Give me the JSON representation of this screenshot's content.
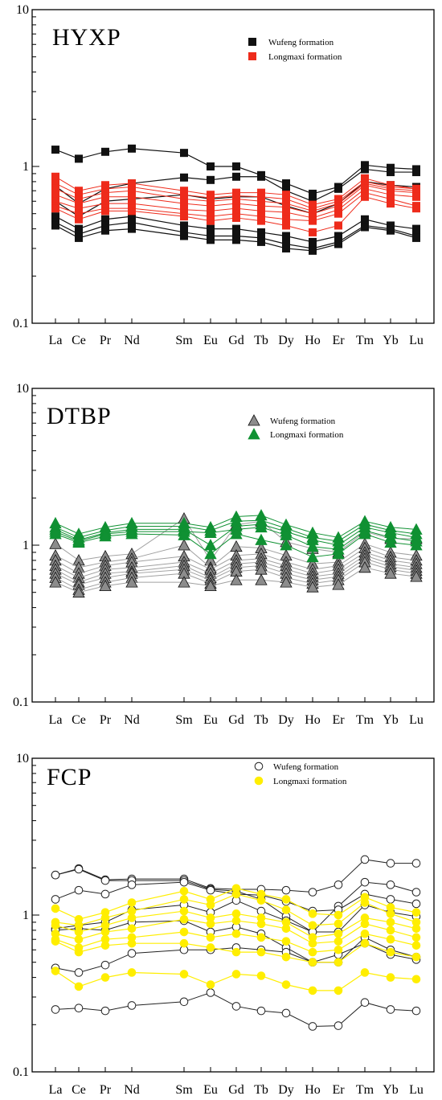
{
  "colors": {
    "wufeng_hyxp": "#111111",
    "longmaxi_hyxp": "#ee2b1b",
    "wufeng_dtbp": "#8c8c8c",
    "longmaxi_dtbp": "#109133",
    "wufeng_fcp": "#ffffff",
    "longmaxi_fcp": "#ffee00"
  },
  "chart_data": [
    {
      "type": "line",
      "title": "HYXP",
      "y_scale": "log",
      "ylim": [
        0.1,
        10
      ],
      "y_ticks": [
        "10",
        "1",
        "0.1"
      ],
      "categories": [
        "La",
        "Ce",
        "Pr",
        "Nd",
        "Sm",
        "Eu",
        "Gd",
        "Tb",
        "Dy",
        "Ho",
        "Er",
        "Tm",
        "Yb",
        "Lu"
      ],
      "legend": [
        "Wufeng  formation",
        "Longmaxi formation"
      ],
      "series": [
        {
          "group": "wufeng",
          "values": [
            1.28,
            1.12,
            1.24,
            1.3,
            1.22,
            1.0,
            1.0,
            0.88,
            0.78,
            0.67,
            0.74,
            1.02,
            0.98,
            0.96
          ]
        },
        {
          "group": "wufeng",
          "values": [
            0.75,
            0.58,
            0.72,
            0.78,
            0.85,
            0.82,
            0.86,
            0.86,
            0.7,
            0.6,
            0.72,
            0.96,
            0.92,
            0.92
          ]
        },
        {
          "group": "wufeng",
          "values": [
            0.6,
            0.48,
            0.6,
            0.62,
            0.66,
            0.62,
            0.64,
            0.64,
            0.56,
            0.5,
            0.58,
            0.8,
            0.76,
            0.74
          ]
        },
        {
          "group": "wufeng",
          "values": [
            0.48,
            0.4,
            0.46,
            0.48,
            0.42,
            0.4,
            0.4,
            0.38,
            0.36,
            0.33,
            0.36,
            0.46,
            0.42,
            0.4
          ]
        },
        {
          "group": "wufeng",
          "values": [
            0.44,
            0.37,
            0.42,
            0.44,
            0.38,
            0.36,
            0.36,
            0.35,
            0.32,
            0.3,
            0.33,
            0.42,
            0.4,
            0.36
          ]
        },
        {
          "group": "wufeng",
          "values": [
            0.42,
            0.35,
            0.39,
            0.4,
            0.36,
            0.34,
            0.34,
            0.33,
            0.3,
            0.29,
            0.32,
            0.41,
            0.39,
            0.35
          ]
        },
        {
          "group": "longmaxi",
          "values": [
            0.86,
            0.7,
            0.76,
            0.78,
            0.7,
            0.66,
            0.68,
            0.68,
            0.66,
            0.57,
            0.62,
            0.84,
            0.76,
            0.72
          ]
        },
        {
          "group": "longmaxi",
          "values": [
            0.78,
            0.66,
            0.72,
            0.74,
            0.66,
            0.63,
            0.65,
            0.64,
            0.62,
            0.54,
            0.6,
            0.8,
            0.74,
            0.72
          ]
        },
        {
          "group": "longmaxi",
          "values": [
            0.72,
            0.62,
            0.68,
            0.7,
            0.62,
            0.6,
            0.62,
            0.6,
            0.58,
            0.52,
            0.58,
            0.78,
            0.72,
            0.7
          ]
        },
        {
          "group": "longmaxi",
          "values": [
            0.66,
            0.58,
            0.64,
            0.64,
            0.58,
            0.56,
            0.58,
            0.56,
            0.55,
            0.5,
            0.56,
            0.76,
            0.7,
            0.68
          ]
        },
        {
          "group": "longmaxi",
          "values": [
            0.6,
            0.54,
            0.58,
            0.58,
            0.53,
            0.52,
            0.54,
            0.52,
            0.51,
            0.47,
            0.53,
            0.72,
            0.66,
            0.64
          ]
        },
        {
          "group": "longmaxi",
          "values": [
            0.56,
            0.5,
            0.54,
            0.54,
            0.5,
            0.48,
            0.5,
            0.48,
            0.46,
            0.45,
            0.5,
            0.68,
            0.62,
            0.56
          ]
        },
        {
          "group": "longmaxi",
          "values": [
            0.54,
            0.46,
            0.52,
            0.52,
            0.48,
            0.45,
            0.47,
            0.45,
            0.42,
            0.38,
            0.42,
            0.64,
            0.58,
            0.54
          ]
        }
      ]
    },
    {
      "type": "line",
      "title": "DTBP",
      "y_scale": "log",
      "ylim": [
        0.1,
        10
      ],
      "y_ticks": [
        "10",
        "1",
        "0.1"
      ],
      "categories": [
        "La",
        "Ce",
        "Pr",
        "Nd",
        "Sm",
        "Eu",
        "Gd",
        "Tb",
        "Dy",
        "Ho",
        "Er",
        "Tm",
        "Yb",
        "Lu"
      ],
      "legend": [
        "Wufeng  formation",
        "Longmaxi formation"
      ],
      "series": [
        {
          "group": "wufeng",
          "values": [
            1.02,
            0.8,
            0.85,
            0.88,
            1.48,
            0.8,
            1.35,
            1.42,
            1.05,
            0.95,
            0.9,
            1.22,
            1.1,
            1.1
          ]
        },
        {
          "group": "wufeng",
          "values": [
            0.86,
            0.72,
            0.78,
            0.82,
            1.0,
            0.72,
            0.98,
            0.96,
            0.86,
            0.76,
            0.78,
            1.02,
            0.9,
            0.86
          ]
        },
        {
          "group": "wufeng",
          "values": [
            0.8,
            0.66,
            0.74,
            0.78,
            0.85,
            0.7,
            0.86,
            0.88,
            0.78,
            0.7,
            0.74,
            0.96,
            0.84,
            0.8
          ]
        },
        {
          "group": "wufeng",
          "values": [
            0.74,
            0.62,
            0.7,
            0.72,
            0.78,
            0.66,
            0.8,
            0.82,
            0.74,
            0.66,
            0.7,
            0.9,
            0.8,
            0.76
          ]
        },
        {
          "group": "wufeng",
          "values": [
            0.7,
            0.58,
            0.66,
            0.68,
            0.74,
            0.62,
            0.76,
            0.78,
            0.7,
            0.63,
            0.66,
            0.86,
            0.76,
            0.72
          ]
        },
        {
          "group": "wufeng",
          "values": [
            0.66,
            0.56,
            0.62,
            0.66,
            0.7,
            0.6,
            0.72,
            0.74,
            0.66,
            0.6,
            0.63,
            0.82,
            0.73,
            0.69
          ]
        },
        {
          "group": "wufeng",
          "values": [
            0.62,
            0.52,
            0.58,
            0.62,
            0.66,
            0.57,
            0.68,
            0.7,
            0.62,
            0.57,
            0.6,
            0.78,
            0.7,
            0.66
          ]
        },
        {
          "group": "wufeng",
          "values": [
            0.58,
            0.5,
            0.55,
            0.58,
            0.58,
            0.55,
            0.6,
            0.6,
            0.58,
            0.54,
            0.56,
            0.72,
            0.66,
            0.63
          ]
        },
        {
          "group": "longmaxi",
          "values": [
            1.38,
            1.18,
            1.3,
            1.38,
            1.38,
            1.3,
            1.52,
            1.55,
            1.35,
            1.2,
            1.12,
            1.42,
            1.3,
            1.26
          ]
        },
        {
          "group": "longmaxi",
          "values": [
            1.3,
            1.12,
            1.24,
            1.32,
            1.32,
            1.24,
            1.42,
            1.44,
            1.28,
            1.12,
            1.06,
            1.36,
            1.24,
            1.18
          ]
        },
        {
          "group": "longmaxi",
          "values": [
            1.26,
            1.08,
            1.2,
            1.26,
            1.26,
            1.0,
            1.32,
            1.36,
            1.22,
            1.08,
            1.0,
            1.3,
            1.2,
            1.12
          ]
        },
        {
          "group": "longmaxi",
          "values": [
            1.22,
            1.06,
            1.18,
            1.22,
            1.22,
            1.2,
            1.26,
            1.3,
            1.16,
            0.98,
            0.94,
            1.24,
            1.12,
            1.06
          ]
        },
        {
          "group": "longmaxi",
          "values": [
            1.18,
            1.04,
            1.14,
            1.18,
            1.16,
            0.88,
            1.18,
            1.08,
            1.0,
            0.84,
            0.88,
            1.18,
            1.04,
            1.0
          ]
        }
      ]
    },
    {
      "type": "line",
      "title": "FCP",
      "y_scale": "log",
      "ylim": [
        0.1,
        10
      ],
      "y_ticks": [
        "10",
        "1",
        "0.1"
      ],
      "categories": [
        "La",
        "Ce",
        "Pr",
        "Nd",
        "Sm",
        "Eu",
        "Gd",
        "Tb",
        "Dy",
        "Ho",
        "Er",
        "Tm",
        "Yb",
        "Lu"
      ],
      "legend": [
        "Wufeng  formation",
        "Longmaxi formation"
      ],
      "series": [
        {
          "group": "wufeng",
          "values": [
            1.8,
            1.98,
            1.68,
            1.7,
            1.7,
            1.48,
            1.46,
            1.46,
            1.44,
            1.4,
            1.56,
            2.26,
            2.14,
            2.14
          ]
        },
        {
          "group": "wufeng",
          "values": [
            1.8,
            1.96,
            1.66,
            1.66,
            1.66,
            1.46,
            1.42,
            1.26,
            0.98,
            0.78,
            1.14,
            1.62,
            1.56,
            1.4
          ]
        },
        {
          "group": "wufeng",
          "values": [
            1.26,
            1.44,
            1.36,
            1.56,
            1.62,
            1.44,
            1.36,
            1.34,
            1.22,
            1.06,
            1.08,
            1.36,
            1.26,
            1.18
          ]
        },
        {
          "group": "wufeng",
          "values": [
            0.82,
            0.86,
            0.9,
            1.08,
            1.16,
            1.04,
            1.24,
            1.06,
            0.92,
            0.78,
            0.78,
            1.16,
            1.04,
            0.98
          ]
        },
        {
          "group": "wufeng",
          "values": [
            0.8,
            0.82,
            0.8,
            0.9,
            0.92,
            0.78,
            0.84,
            0.76,
            0.62,
            0.5,
            0.5,
            0.72,
            0.6,
            0.54
          ]
        },
        {
          "group": "wufeng",
          "values": [
            0.46,
            0.43,
            0.48,
            0.57,
            0.6,
            0.6,
            0.62,
            0.6,
            0.58,
            0.5,
            0.56,
            0.66,
            0.56,
            0.52
          ]
        },
        {
          "group": "wufeng",
          "values": [
            0.25,
            0.255,
            0.245,
            0.265,
            0.28,
            0.32,
            0.262,
            0.245,
            0.237,
            0.195,
            0.197,
            0.277,
            0.25,
            0.245
          ]
        },
        {
          "group": "longmaxi",
          "values": [
            1.1,
            0.94,
            1.04,
            1.2,
            1.42,
            1.26,
            1.48,
            1.36,
            1.26,
            1.02,
            1.0,
            1.3,
            1.12,
            1.04
          ]
        },
        {
          "group": "longmaxi",
          "values": [
            0.9,
            0.86,
            0.96,
            1.06,
            1.26,
            1.16,
            1.36,
            1.24,
            1.08,
            0.86,
            0.88,
            1.2,
            1.02,
            0.9
          ]
        },
        {
          "group": "longmaxi",
          "values": [
            0.86,
            0.78,
            0.86,
            0.96,
            1.06,
            0.96,
            1.02,
            0.96,
            0.9,
            0.72,
            0.76,
            0.96,
            0.9,
            0.82
          ]
        },
        {
          "group": "longmaxi",
          "values": [
            0.76,
            0.7,
            0.78,
            0.82,
            0.94,
            0.88,
            0.92,
            0.88,
            0.82,
            0.66,
            0.68,
            0.88,
            0.8,
            0.72
          ]
        },
        {
          "group": "longmaxi",
          "values": [
            0.7,
            0.62,
            0.7,
            0.72,
            0.78,
            0.72,
            0.76,
            0.72,
            0.68,
            0.58,
            0.6,
            0.76,
            0.7,
            0.64
          ]
        },
        {
          "group": "longmaxi",
          "values": [
            0.68,
            0.58,
            0.64,
            0.66,
            0.66,
            0.62,
            0.58,
            0.58,
            0.54,
            0.5,
            0.5,
            0.66,
            0.58,
            0.54
          ]
        },
        {
          "group": "longmaxi",
          "values": [
            0.44,
            0.35,
            0.4,
            0.43,
            0.42,
            0.36,
            0.42,
            0.41,
            0.36,
            0.33,
            0.33,
            0.43,
            0.4,
            0.39
          ]
        }
      ]
    }
  ]
}
